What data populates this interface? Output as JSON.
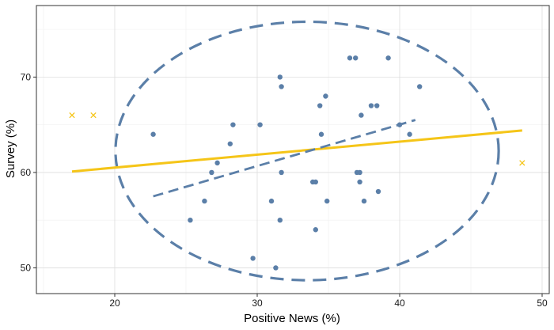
{
  "chart_data": {
    "type": "scatter",
    "title": "",
    "xlabel": "Positive News (%)",
    "ylabel": "Survey (%)",
    "xlim": [
      14.5,
      50.5
    ],
    "ylim": [
      47.3,
      77.5
    ],
    "x_ticks": [
      20,
      30,
      40,
      50
    ],
    "y_ticks": [
      50,
      60,
      70
    ],
    "x_tick_labels": [
      "20",
      "30",
      "40",
      "50"
    ],
    "y_tick_labels": [
      "50",
      "60",
      "70"
    ],
    "grid": true,
    "legend": "none",
    "series": [
      {
        "marker": "circle",
        "color": "#5b7fa8",
        "points": [
          [
            22.7,
            64
          ],
          [
            25.3,
            55
          ],
          [
            26.3,
            57
          ],
          [
            26.8,
            60
          ],
          [
            27.2,
            61
          ],
          [
            28.1,
            63
          ],
          [
            28.3,
            65
          ],
          [
            29.7,
            51
          ],
          [
            30.2,
            65
          ],
          [
            31.0,
            57
          ],
          [
            31.3,
            50
          ],
          [
            31.6,
            55
          ],
          [
            31.6,
            70
          ],
          [
            31.7,
            69
          ],
          [
            31.7,
            60
          ],
          [
            33.9,
            59
          ],
          [
            34.1,
            59
          ],
          [
            34.1,
            54
          ],
          [
            34.4,
            67
          ],
          [
            34.5,
            64
          ],
          [
            34.8,
            68
          ],
          [
            34.9,
            57
          ],
          [
            36.5,
            72
          ],
          [
            36.9,
            72
          ],
          [
            37.0,
            60
          ],
          [
            37.2,
            60
          ],
          [
            37.2,
            59
          ],
          [
            37.3,
            66
          ],
          [
            37.5,
            57
          ],
          [
            38.0,
            67
          ],
          [
            38.4,
            67
          ],
          [
            38.5,
            58
          ],
          [
            39.2,
            72
          ],
          [
            40.0,
            65
          ],
          [
            40.7,
            64
          ],
          [
            41.4,
            69
          ]
        ]
      },
      {
        "marker": "cross",
        "color": "#f5c518",
        "points": [
          [
            17.0,
            66
          ],
          [
            18.5,
            66
          ],
          [
            48.6,
            61
          ]
        ]
      }
    ],
    "fit_lines": [
      {
        "style": "solid",
        "color": "#f5c518",
        "from": [
          17.0,
          60.1
        ],
        "to": [
          48.6,
          64.4
        ]
      },
      {
        "style": "dashed",
        "color": "#5b7fa8",
        "from": [
          22.7,
          57.5
        ],
        "to": [
          41.1,
          65.5
        ]
      }
    ],
    "ellipse": {
      "style": "dashed",
      "color": "#5b7fa8",
      "center": [
        33.5,
        62.25
      ],
      "semi_axis_x": 13.45,
      "semi_axis_y": 13.55
    }
  }
}
